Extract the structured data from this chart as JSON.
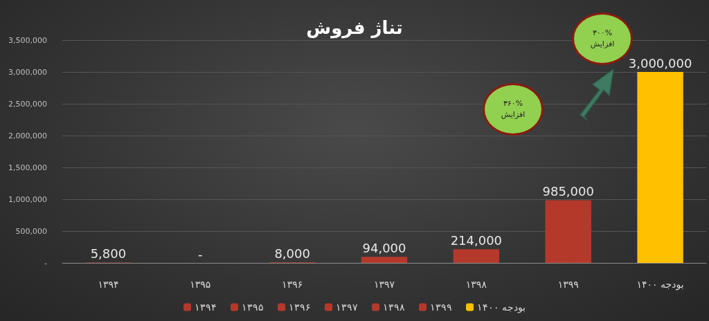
{
  "chart_data": {
    "type": "bar",
    "title": "تناژ فروش",
    "categories": [
      "۱۳۹۴",
      "۱۳۹۵",
      "۱۳۹۶",
      "۱۳۹۷",
      "۱۳۹۸",
      "۱۳۹۹",
      "بودجه ۱۴۰۰"
    ],
    "series": [
      {
        "name": "۱۳۹۴",
        "color": "#b5392b",
        "values": [
          5800,
          null,
          null,
          null,
          null,
          null,
          null
        ],
        "value_labels": [
          "5,800",
          null,
          null,
          null,
          null,
          null,
          null
        ]
      },
      {
        "name": "۱۳۹۵",
        "color": "#b5392b",
        "values": [
          null,
          0,
          null,
          null,
          null,
          null,
          null
        ],
        "value_labels": [
          null,
          "-",
          null,
          null,
          null,
          null,
          null
        ]
      },
      {
        "name": "۱۳۹۶",
        "color": "#b5392b",
        "values": [
          null,
          null,
          8000,
          null,
          null,
          null,
          null
        ],
        "value_labels": [
          null,
          null,
          "8,000",
          null,
          null,
          null,
          null
        ]
      },
      {
        "name": "۱۳۹۷",
        "color": "#b5392b",
        "values": [
          null,
          null,
          null,
          94000,
          null,
          null,
          null
        ],
        "value_labels": [
          null,
          null,
          null,
          "94,000",
          null,
          null,
          null
        ]
      },
      {
        "name": "۱۳۹۸",
        "color": "#b5392b",
        "values": [
          null,
          null,
          null,
          null,
          214000,
          null,
          null
        ],
        "value_labels": [
          null,
          null,
          null,
          null,
          "214,000",
          null,
          null
        ]
      },
      {
        "name": "۱۳۹۹",
        "color": "#b5392b",
        "values": [
          null,
          null,
          null,
          null,
          null,
          985000,
          null
        ],
        "value_labels": [
          null,
          null,
          null,
          null,
          null,
          "985,000",
          null
        ]
      },
      {
        "name": "بودجه ۱۴۰۰",
        "color": "#ffc000",
        "values": [
          null,
          null,
          null,
          null,
          null,
          null,
          3000000
        ],
        "value_labels": [
          null,
          null,
          null,
          null,
          null,
          null,
          "3,000,000"
        ]
      }
    ],
    "ylim": [
      0,
      3500000
    ],
    "yticks": [
      {
        "value": 0,
        "label": "-"
      },
      {
        "value": 500000,
        "label": "500,000"
      },
      {
        "value": 1000000,
        "label": "1,000,000"
      },
      {
        "value": 1500000,
        "label": "1,500,000"
      },
      {
        "value": 2000000,
        "label": "2,000,000"
      },
      {
        "value": 2500000,
        "label": "2,500,000"
      },
      {
        "value": 3000000,
        "label": "3,000,000"
      },
      {
        "value": 3500000,
        "label": "3,500,000"
      }
    ],
    "grid": "y",
    "legend": "bottom",
    "annotations": [
      "۳۶۰% افزایش",
      "۳۰۰% افزایش"
    ]
  }
}
